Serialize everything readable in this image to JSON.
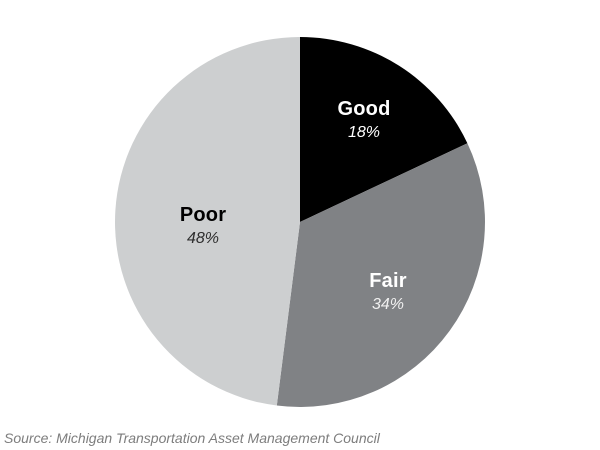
{
  "chart_data": {
    "type": "pie",
    "title": "",
    "categories": [
      "Good",
      "Fair",
      "Poor"
    ],
    "values": [
      18,
      34,
      48
    ],
    "unit": "%",
    "start_angle_deg": -90,
    "direction": "clockwise",
    "legend": "none",
    "background": "#ffffff",
    "slices": [
      {
        "label": "Good",
        "value": 18,
        "pct_label": "18%",
        "color": "#000000",
        "label_color": "#ffffff",
        "pct_color": "#ffffff"
      },
      {
        "label": "Fair",
        "value": 34,
        "pct_label": "34%",
        "color": "#808285",
        "label_color": "#ffffff",
        "pct_color": "#f0f0f0"
      },
      {
        "label": "Poor",
        "value": 48,
        "pct_label": "48%",
        "color": "#cdcfd0",
        "label_color": "#000000",
        "pct_color": "#2e2e2e"
      }
    ],
    "source_note": "Source: Michigan Transportation Asset Management Council"
  }
}
